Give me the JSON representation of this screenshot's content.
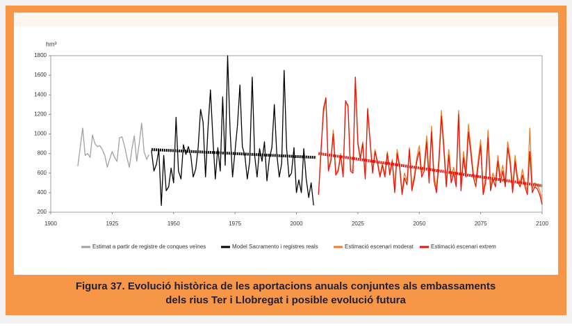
{
  "chart_data": {
    "type": "line",
    "ylabel": "hm³",
    "xlim": [
      1900,
      2100
    ],
    "xticks": [
      1900,
      1925,
      1950,
      1975,
      2000,
      2025,
      2050,
      2075,
      2100
    ],
    "ylim": [
      200,
      1800
    ],
    "yticks": [
      200,
      400,
      600,
      800,
      1000,
      1200,
      1400,
      1600,
      1800
    ],
    "series": [
      {
        "name": "Estimat a partir de registre de conques veïnes",
        "color": "#a0a0a0",
        "x": [
          1911,
          1912,
          1913,
          1914,
          1915,
          1916,
          1917,
          1918,
          1919,
          1920,
          1921,
          1922,
          1923,
          1924,
          1925,
          1926,
          1927,
          1928,
          1929,
          1930,
          1931,
          1932,
          1933,
          1934,
          1935,
          1936,
          1937,
          1938,
          1939,
          1940
        ],
        "values": [
          670,
          860,
          1060,
          780,
          800,
          760,
          990,
          900,
          870,
          880,
          840,
          780,
          660,
          740,
          820,
          760,
          720,
          960,
          970,
          880,
          760,
          660,
          840,
          980,
          720,
          900,
          1110,
          820,
          740,
          790
        ]
      },
      {
        "name": "Model Sacramento i registres reals",
        "color": "#000000",
        "x": [
          1941,
          1942,
          1943,
          1944,
          1945,
          1946,
          1947,
          1948,
          1949,
          1950,
          1951,
          1952,
          1953,
          1954,
          1955,
          1956,
          1957,
          1958,
          1959,
          1960,
          1961,
          1962,
          1963,
          1964,
          1965,
          1966,
          1967,
          1968,
          1969,
          1970,
          1971,
          1972,
          1973,
          1974,
          1975,
          1976,
          1977,
          1978,
          1979,
          1980,
          1981,
          1982,
          1983,
          1984,
          1985,
          1986,
          1987,
          1988,
          1989,
          1990,
          1991,
          1992,
          1993,
          1994,
          1995,
          1996,
          1997,
          1998,
          1999,
          2000,
          2001,
          2002,
          2003,
          2004,
          2005,
          2006,
          2007
        ],
        "values": [
          830,
          620,
          690,
          840,
          270,
          780,
          420,
          460,
          650,
          500,
          1170,
          620,
          540,
          890,
          790,
          870,
          780,
          560,
          640,
          860,
          1250,
          1120,
          560,
          1050,
          1450,
          960,
          540,
          860,
          620,
          1380,
          680,
          1800,
          1030,
          560,
          820,
          1090,
          1500,
          870,
          780,
          540,
          720,
          1580,
          780,
          560,
          850,
          720,
          920,
          520,
          750,
          860,
          1300,
          800,
          560,
          700,
          1650,
          850,
          560,
          600,
          860,
          400,
          530,
          400,
          850,
          540,
          350,
          500,
          270
        ]
      },
      {
        "name": "Estimació escenari moderat",
        "color": "#f47c20",
        "x": [
          2009,
          2010,
          2011,
          2012,
          2013,
          2014,
          2015,
          2016,
          2017,
          2018,
          2019,
          2020,
          2021,
          2022,
          2023,
          2024,
          2025,
          2026,
          2027,
          2028,
          2029,
          2030,
          2031,
          2032,
          2033,
          2034,
          2035,
          2036,
          2037,
          2038,
          2039,
          2040,
          2041,
          2042,
          2043,
          2044,
          2045,
          2046,
          2047,
          2048,
          2049,
          2050,
          2051,
          2052,
          2053,
          2054,
          2055,
          2056,
          2057,
          2058,
          2059,
          2060,
          2061,
          2062,
          2063,
          2064,
          2065,
          2066,
          2067,
          2068,
          2069,
          2070,
          2071,
          2072,
          2073,
          2074,
          2075,
          2076,
          2077,
          2078,
          2079,
          2080,
          2081,
          2082,
          2083,
          2084,
          2085,
          2086,
          2087,
          2088,
          2089,
          2090,
          2091,
          2092,
          2093,
          2094,
          2095,
          2096,
          2097,
          2098,
          2099,
          2100
        ],
        "values": [
          380,
          860,
          1200,
          1370,
          640,
          740,
          1040,
          600,
          640,
          800,
          580,
          1320,
          1300,
          640,
          620,
          1580,
          920,
          760,
          920,
          560,
          1240,
          940,
          620,
          840,
          720,
          580,
          700,
          580,
          820,
          600,
          740,
          440,
          840,
          680,
          420,
          600,
          520,
          860,
          460,
          580,
          760,
          880,
          600,
          680,
          980,
          560,
          1080,
          580,
          440,
          760,
          1240,
          900,
          500,
          840,
          560,
          660,
          520,
          1240,
          460,
          820,
          620,
          1100,
          860,
          600,
          520,
          740,
          940,
          420,
          560,
          1040,
          460,
          600,
          520,
          780,
          560,
          680,
          500,
          920,
          760,
          440,
          780,
          560,
          500,
          640,
          500,
          420,
          1060,
          440,
          500,
          480,
          420,
          330
        ]
      },
      {
        "name": "Estimació escenari extrem",
        "color": "#e8140c",
        "x": [
          2009,
          2010,
          2011,
          2012,
          2013,
          2014,
          2015,
          2016,
          2017,
          2018,
          2019,
          2020,
          2021,
          2022,
          2023,
          2024,
          2025,
          2026,
          2027,
          2028,
          2029,
          2030,
          2031,
          2032,
          2033,
          2034,
          2035,
          2036,
          2037,
          2038,
          2039,
          2040,
          2041,
          2042,
          2043,
          2044,
          2045,
          2046,
          2047,
          2048,
          2049,
          2050,
          2051,
          2052,
          2053,
          2054,
          2055,
          2056,
          2057,
          2058,
          2059,
          2060,
          2061,
          2062,
          2063,
          2064,
          2065,
          2066,
          2067,
          2068,
          2069,
          2070,
          2071,
          2072,
          2073,
          2074,
          2075,
          2076,
          2077,
          2078,
          2079,
          2080,
          2081,
          2082,
          2083,
          2084,
          2085,
          2086,
          2087,
          2088,
          2089,
          2090,
          2091,
          2092,
          2093,
          2094,
          2095,
          2096,
          2097,
          2098,
          2099,
          2100
        ],
        "values": [
          380,
          820,
          1260,
          1370,
          620,
          720,
          1000,
          580,
          620,
          780,
          560,
          1340,
          1280,
          620,
          600,
          1580,
          900,
          740,
          900,
          540,
          1260,
          920,
          600,
          820,
          700,
          560,
          680,
          560,
          800,
          580,
          720,
          400,
          800,
          660,
          380,
          550,
          480,
          840,
          420,
          540,
          720,
          820,
          560,
          620,
          920,
          500,
          1020,
          520,
          400,
          700,
          1180,
          840,
          460,
          780,
          500,
          600,
          460,
          1200,
          420,
          760,
          560,
          1020,
          800,
          560,
          460,
          680,
          880,
          380,
          500,
          960,
          420,
          540,
          460,
          720,
          500,
          620,
          460,
          860,
          700,
          400,
          720,
          520,
          460,
          580,
          460,
          380,
          820,
          400,
          460,
          440,
          380,
          280
        ]
      }
    ],
    "trend_lines": [
      {
        "color": "#000000",
        "x": [
          1941,
          2008
        ],
        "values": [
          840,
          760
        ]
      },
      {
        "color": "#e8140c",
        "x": [
          2009,
          2100
        ],
        "values": [
          800,
          470
        ]
      }
    ],
    "caption": [
      "Figura 37. Evolució històrica de les aportacions anuals conjuntes als embassaments",
      "dels rius Ter i Llobregat i posible evolució futura"
    ]
  }
}
